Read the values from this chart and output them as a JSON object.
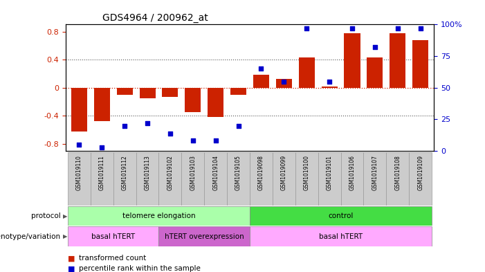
{
  "title": "GDS4964 / 200962_at",
  "samples": [
    "GSM1019110",
    "GSM1019111",
    "GSM1019112",
    "GSM1019113",
    "GSM1019102",
    "GSM1019103",
    "GSM1019104",
    "GSM1019105",
    "GSM1019098",
    "GSM1019099",
    "GSM1019100",
    "GSM1019101",
    "GSM1019106",
    "GSM1019107",
    "GSM1019108",
    "GSM1019109"
  ],
  "bar_values": [
    -0.62,
    -0.48,
    -0.1,
    -0.15,
    -0.13,
    -0.35,
    -0.42,
    -0.1,
    0.18,
    0.13,
    0.43,
    0.02,
    0.78,
    0.43,
    0.78,
    0.68
  ],
  "dot_values": [
    5,
    3,
    20,
    22,
    14,
    8,
    8,
    20,
    65,
    55,
    97,
    55,
    97,
    82,
    97,
    97
  ],
  "ylim": [
    -0.9,
    0.9
  ],
  "y2lim": [
    0,
    100
  ],
  "yticks": [
    -0.8,
    -0.4,
    0.0,
    0.4,
    0.8
  ],
  "ytick_labels": [
    "-0.8",
    "-0.4",
    "0",
    "0.4",
    "0.8"
  ],
  "y2ticks": [
    0,
    25,
    50,
    75,
    100
  ],
  "y2tick_labels": [
    "0",
    "25",
    "50",
    "75",
    "100%"
  ],
  "bar_color": "#cc2200",
  "dot_color": "#0000cc",
  "zero_line_color": "#cc2200",
  "dotted_line_color": "#555555",
  "protocol_labels": [
    {
      "text": "telomere elongation",
      "start": 0,
      "end": 8,
      "color": "#aaffaa"
    },
    {
      "text": "control",
      "start": 8,
      "end": 16,
      "color": "#44dd44"
    }
  ],
  "genotype_labels": [
    {
      "text": "basal hTERT",
      "start": 0,
      "end": 4,
      "color": "#ffaaff"
    },
    {
      "text": "hTERT overexpression",
      "start": 4,
      "end": 8,
      "color": "#cc66cc"
    },
    {
      "text": "basal hTERT",
      "start": 8,
      "end": 16,
      "color": "#ffaaff"
    }
  ],
  "legend_bar_label": "transformed count",
  "legend_dot_label": "percentile rank within the sample",
  "protocol_row_label": "protocol",
  "genotype_row_label": "genotype/variation",
  "bg_color": "#ffffff",
  "plot_bg_color": "#ffffff",
  "tick_label_color_left": "#cc2200",
  "tick_label_color_right": "#0000cc",
  "sample_bg_color": "#cccccc",
  "sample_border_color": "#999999"
}
